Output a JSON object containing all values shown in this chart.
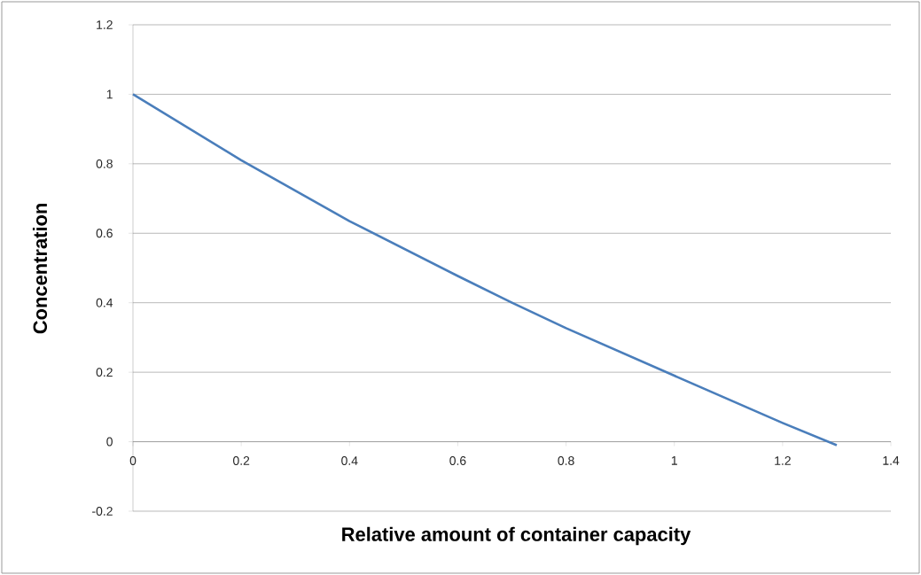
{
  "chart_data": {
    "type": "line",
    "xlabel": "Relative amount of container capacity",
    "ylabel": "Concentration",
    "x": [
      0,
      0.2,
      0.4,
      0.6,
      0.7,
      0.8,
      1.0,
      1.2,
      1.3
    ],
    "series": [
      {
        "color": "#4a7ebb",
        "values": [
          1,
          0.81,
          0.635,
          0.477,
          0.4,
          0.327,
          0.19,
          0.054,
          -0.01
        ]
      }
    ],
    "xlim": [
      0,
      1.4
    ],
    "ylim": [
      -0.2,
      1.2
    ],
    "xticks": [
      0,
      0.2,
      0.4,
      0.6,
      0.8,
      1,
      1.2,
      1.4
    ],
    "yticks": [
      -0.2,
      0,
      0.2,
      0.4,
      0.6,
      0.8,
      1,
      1.2
    ],
    "grid": "y",
    "marker": "none",
    "line_style": "solid"
  }
}
